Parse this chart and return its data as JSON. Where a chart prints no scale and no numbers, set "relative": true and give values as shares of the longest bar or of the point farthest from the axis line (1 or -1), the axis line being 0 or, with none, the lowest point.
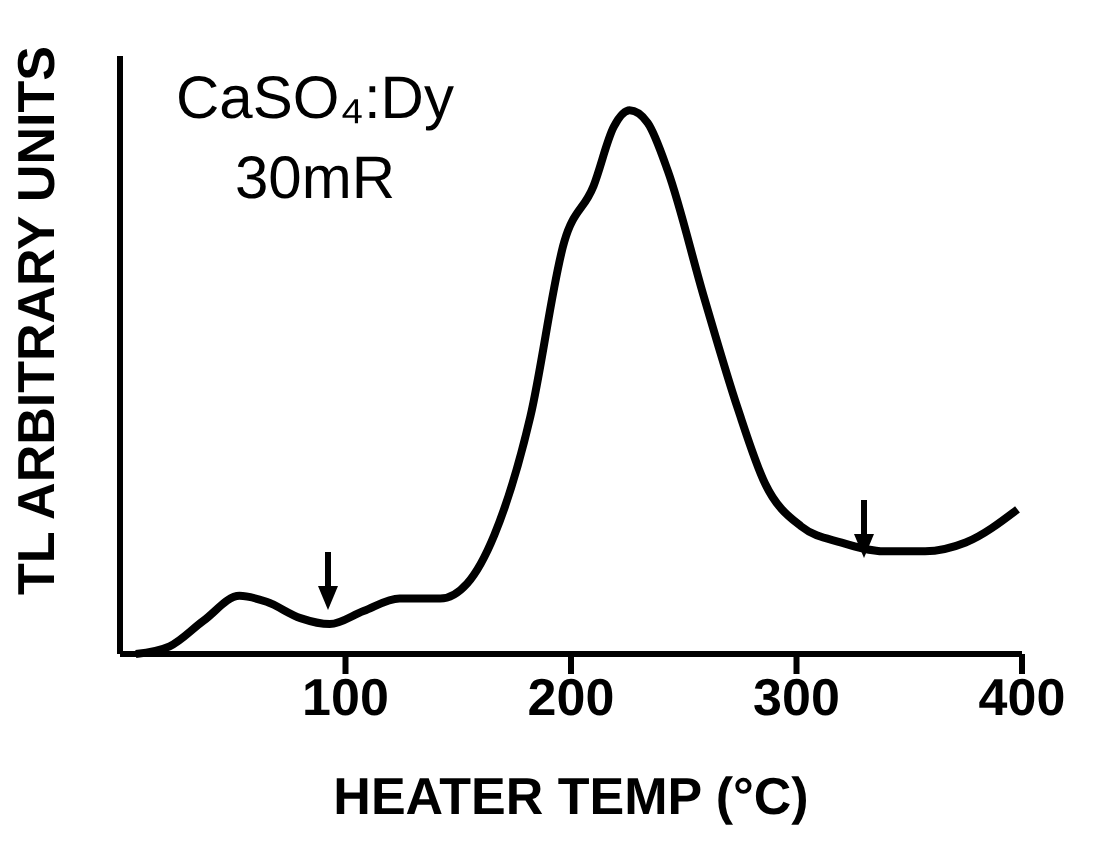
{
  "chart_data": {
    "type": "line",
    "relative": true,
    "xlabel": "HEATER TEMP (°C)",
    "ylabel": "TL ARBITRARY UNITS",
    "annotations": [
      "CaSO₄:Dy",
      "30mR"
    ],
    "xlim": [
      0,
      400
    ],
    "xticks": [
      100,
      200,
      300,
      400
    ],
    "grid": false,
    "legend": false,
    "marker": "none",
    "line_style": "solid",
    "x": [
      7,
      22,
      37,
      53,
      65,
      80,
      93,
      108,
      124,
      142,
      154,
      166,
      182,
      197,
      210,
      219,
      226,
      234,
      243,
      259,
      274,
      286,
      302,
      320,
      339,
      357,
      375,
      398
    ],
    "series": [
      {
        "color": "#000000",
        "values": [
          0,
          0.014,
          0.061,
          0.107,
          0.096,
          0.066,
          0.055,
          0.079,
          0.102,
          0.102,
          0.13,
          0.219,
          0.437,
          0.758,
          0.861,
          0.97,
          1,
          0.977,
          0.888,
          0.656,
          0.451,
          0.314,
          0.235,
          0.205,
          0.189,
          0.189,
          0.205,
          0.266
        ]
      }
    ]
  }
}
